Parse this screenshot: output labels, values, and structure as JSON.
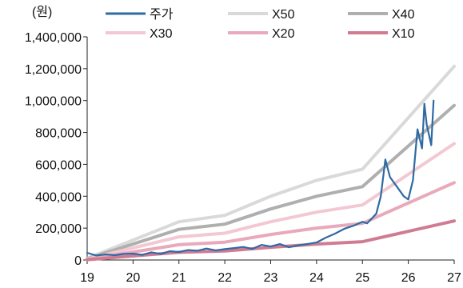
{
  "chart_data": {
    "type": "line",
    "unit_label": "(원)",
    "ylim": [
      0,
      1400000
    ],
    "y_ticks": [
      0,
      200000,
      400000,
      600000,
      800000,
      1000000,
      1200000,
      1400000
    ],
    "y_tick_labels": [
      "0",
      "200,000",
      "400,000",
      "600,000",
      "800,000",
      "1,000,000",
      "1,200,000",
      "1,400,000"
    ],
    "xlim": [
      19,
      27
    ],
    "x_ticks": [
      19,
      20,
      21,
      22,
      23,
      24,
      25,
      26,
      27
    ],
    "x_tick_labels": [
      "19",
      "20",
      "21",
      "22",
      "23",
      "24",
      "25",
      "26",
      "27"
    ],
    "grid": false,
    "legend_position": "top",
    "series": [
      {
        "name": "주가",
        "color": "#2f6aa3",
        "width": 2.2,
        "points": [
          [
            19.0,
            45000
          ],
          [
            19.2,
            28000
          ],
          [
            19.4,
            35000
          ],
          [
            19.6,
            30000
          ],
          [
            19.8,
            38000
          ],
          [
            20.0,
            40000
          ],
          [
            20.2,
            32000
          ],
          [
            20.4,
            48000
          ],
          [
            20.6,
            38000
          ],
          [
            20.8,
            55000
          ],
          [
            21.0,
            50000
          ],
          [
            21.2,
            62000
          ],
          [
            21.4,
            58000
          ],
          [
            21.6,
            72000
          ],
          [
            21.8,
            60000
          ],
          [
            22.0,
            68000
          ],
          [
            22.2,
            75000
          ],
          [
            22.4,
            82000
          ],
          [
            22.6,
            70000
          ],
          [
            22.8,
            95000
          ],
          [
            23.0,
            85000
          ],
          [
            23.2,
            100000
          ],
          [
            23.4,
            80000
          ],
          [
            23.6,
            92000
          ],
          [
            23.8,
            100000
          ],
          [
            24.0,
            110000
          ],
          [
            24.2,
            140000
          ],
          [
            24.4,
            165000
          ],
          [
            24.6,
            195000
          ],
          [
            24.8,
            215000
          ],
          [
            25.0,
            240000
          ],
          [
            25.1,
            230000
          ],
          [
            25.2,
            260000
          ],
          [
            25.3,
            290000
          ],
          [
            25.4,
            400000
          ],
          [
            25.5,
            630000
          ],
          [
            25.6,
            520000
          ],
          [
            25.7,
            480000
          ],
          [
            25.8,
            440000
          ],
          [
            25.9,
            400000
          ],
          [
            26.0,
            380000
          ],
          [
            26.1,
            500000
          ],
          [
            26.2,
            820000
          ],
          [
            26.3,
            700000
          ],
          [
            26.35,
            980000
          ],
          [
            26.4,
            850000
          ],
          [
            26.5,
            720000
          ],
          [
            26.55,
            1000000
          ]
        ]
      },
      {
        "name": "X50",
        "color": "#d9d9d9",
        "width": 4,
        "points": [
          [
            19.0,
            10000
          ],
          [
            21.0,
            240000
          ],
          [
            22.0,
            280000
          ],
          [
            23.0,
            400000
          ],
          [
            24.0,
            500000
          ],
          [
            25.0,
            570000
          ],
          [
            27.0,
            1215000
          ]
        ]
      },
      {
        "name": "X40",
        "color": "#afafaf",
        "width": 4,
        "points": [
          [
            19.0,
            8000
          ],
          [
            21.0,
            192000
          ],
          [
            22.0,
            225000
          ],
          [
            23.0,
            320000
          ],
          [
            24.0,
            400000
          ],
          [
            25.0,
            460000
          ],
          [
            27.0,
            970000
          ]
        ]
      },
      {
        "name": "X30",
        "color": "#f2c8d3",
        "width": 4,
        "points": [
          [
            19.0,
            6000
          ],
          [
            21.0,
            145000
          ],
          [
            22.0,
            168000
          ],
          [
            23.0,
            240000
          ],
          [
            24.0,
            300000
          ],
          [
            25.0,
            345000
          ],
          [
            27.0,
            730000
          ]
        ]
      },
      {
        "name": "X20",
        "color": "#e8a9bb",
        "width": 4,
        "points": [
          [
            19.0,
            4000
          ],
          [
            21.0,
            96000
          ],
          [
            22.0,
            112000
          ],
          [
            23.0,
            160000
          ],
          [
            24.0,
            200000
          ],
          [
            25.0,
            230000
          ],
          [
            27.0,
            485000
          ]
        ]
      },
      {
        "name": "X10",
        "color": "#cf7c93",
        "width": 4,
        "points": [
          [
            19.0,
            2000
          ],
          [
            21.0,
            48000
          ],
          [
            22.0,
            56000
          ],
          [
            23.0,
            80000
          ],
          [
            24.0,
            100000
          ],
          [
            25.0,
            115000
          ],
          [
            27.0,
            245000
          ]
        ]
      }
    ]
  }
}
